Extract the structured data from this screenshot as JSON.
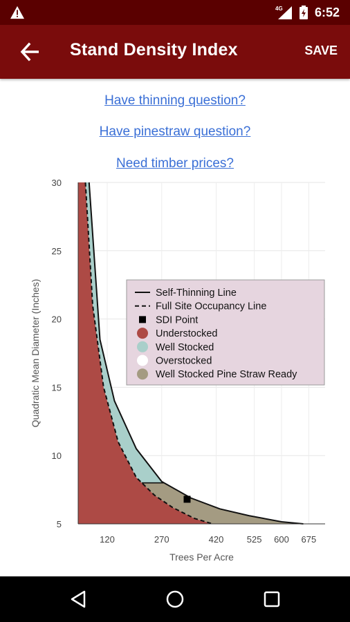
{
  "status_bar": {
    "time": "6:52",
    "network": "4G"
  },
  "app_bar": {
    "title": "Stand Density Index",
    "save_label": "SAVE"
  },
  "links": [
    "Have thinning question?",
    "Have pinestraw question?",
    "Need timber prices?"
  ],
  "colors": {
    "app_bar": "#7a0c0c",
    "status_bar": "#5a0000",
    "understocked": "#ad4a45",
    "well_stocked": "#a9cfca",
    "overstocked": "#ffffff",
    "pine_straw_ready": "#a49b82",
    "legend_bg": "#e6d5df"
  },
  "chart_data": {
    "type": "area",
    "xlabel": "Trees Per Acre",
    "ylabel": "Quadratic Mean Diameter (Inches)",
    "xlim": [
      40,
      720
    ],
    "ylim": [
      5,
      30
    ],
    "x_ticks": [
      "120",
      "270",
      "420",
      "525",
      "600",
      "675"
    ],
    "y_ticks": [
      "5",
      "10",
      "15",
      "20",
      "25",
      "30"
    ],
    "grid": true,
    "legend_placement": "center-right",
    "legend": [
      {
        "label": "Self-Thinning Line",
        "marker": "line-solid"
      },
      {
        "label": "Full Site Occupancy Line",
        "marker": "line-dashed"
      },
      {
        "label": "SDI Point",
        "marker": "square"
      },
      {
        "label": "Understocked",
        "marker": "circle",
        "color": "#ad4a45"
      },
      {
        "label": "Well Stocked",
        "marker": "circle",
        "color": "#a9cfca"
      },
      {
        "label": "Overstocked",
        "marker": "circle",
        "color": "#ffffff"
      },
      {
        "label": "Well Stocked Pine Straw Ready",
        "marker": "circle",
        "color": "#a49b82"
      }
    ],
    "self_thinning_line": {
      "x": [
        70,
        100,
        140,
        200,
        270,
        350,
        430,
        510,
        600,
        660
      ],
      "y": [
        30,
        18.5,
        14,
        10.5,
        8.1,
        6.9,
        6.1,
        5.6,
        5.15,
        5
      ]
    },
    "full_site_occupancy_line": {
      "x": [
        60,
        80,
        110,
        150,
        200,
        250,
        300,
        360,
        410
      ],
      "y": [
        30,
        21,
        15,
        11,
        8.4,
        7.1,
        6.2,
        5.4,
        5
      ]
    },
    "pine_straw_threshold_qmd": 8,
    "sdi_point": {
      "x": 340,
      "y": 6.8
    }
  }
}
